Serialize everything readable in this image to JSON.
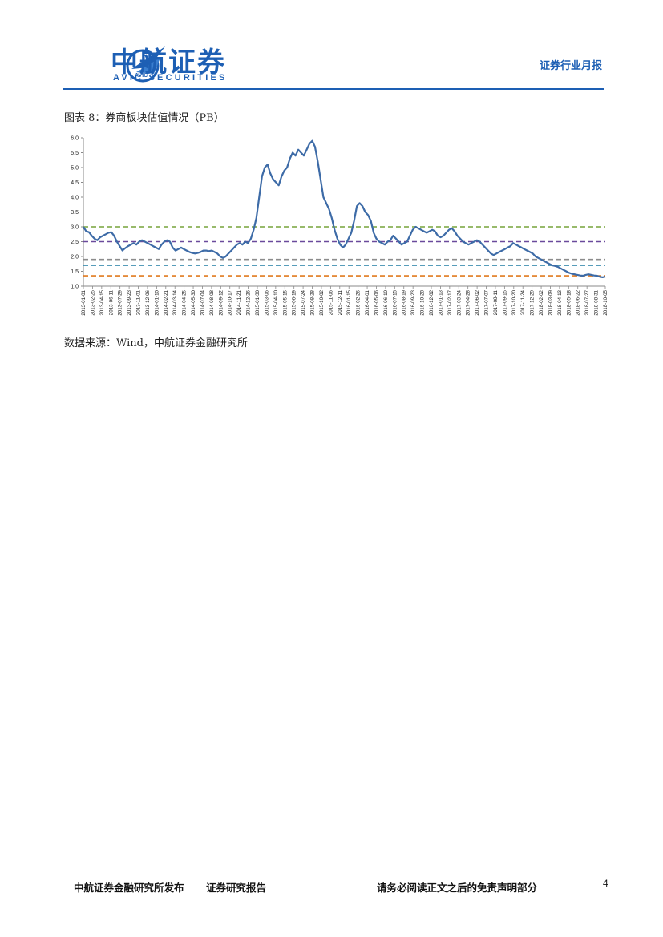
{
  "header": {
    "brand_cn": "中航证券",
    "brand_en": "AVIC SECURITIES",
    "logo_text": "AVIC",
    "report_type": "证券行业月报"
  },
  "figure": {
    "caption": "图表 8：券商板块估值情况（PB）",
    "source": "数据来源：Wind，中航证券金融研究所"
  },
  "chart_data": {
    "type": "line",
    "title": "",
    "xlabel": "",
    "ylabel": "",
    "ylim": [
      1.0,
      6.0
    ],
    "yticks": [
      "1.0",
      "1.5",
      "2.0",
      "2.5",
      "3.0",
      "3.5",
      "4.0",
      "4.5",
      "5.0",
      "5.5",
      "6.0"
    ],
    "x_tick_labels": [
      "2013-01-01",
      "2013-02-25",
      "2013-04-15",
      "2013-06-11",
      "2013-07-29",
      "2013-09-23",
      "2013-11-01",
      "2013-12-06",
      "2014-01-10",
      "2014-02-21",
      "2014-03-14",
      "2014-04-25",
      "2014-05-30",
      "2014-07-04",
      "2014-08-08",
      "2014-09-12",
      "2014-10-17",
      "2014-11-21",
      "2014-12-26",
      "2015-01-30",
      "2015-03-06",
      "2015-04-10",
      "2015-05-15",
      "2015-06-19",
      "2015-07-24",
      "2015-08-28",
      "2015-10-02",
      "2015-11-06",
      "2015-12-11",
      "2016-01-15",
      "2016-02-26",
      "2016-04-01",
      "2016-05-06",
      "2016-06-10",
      "2016-07-15",
      "2016-08-19",
      "2016-09-23",
      "2016-10-28",
      "2016-12-02",
      "2017-01-13",
      "2017-02-17",
      "2017-03-24",
      "2017-04-28",
      "2017-06-02",
      "2017-07-07",
      "2017-08-11",
      "2017-09-15",
      "2017-10-20",
      "2017-11-24",
      "2017-12-29",
      "2018-02-02",
      "2018-03-09",
      "2018-04-13",
      "2018-05-18",
      "2018-06-22",
      "2018-07-27",
      "2018-08-31",
      "2018-10-05"
    ],
    "series": [
      {
        "color": "#3d6ba7",
        "values": [
          3.0,
          2.85,
          2.82,
          2.7,
          2.6,
          2.55,
          2.65,
          2.7,
          2.75,
          2.8,
          2.82,
          2.7,
          2.5,
          2.35,
          2.2,
          2.28,
          2.35,
          2.4,
          2.45,
          2.4,
          2.5,
          2.55,
          2.5,
          2.45,
          2.4,
          2.35,
          2.3,
          2.25,
          2.4,
          2.5,
          2.55,
          2.5,
          2.3,
          2.2,
          2.25,
          2.3,
          2.25,
          2.2,
          2.15,
          2.12,
          2.1,
          2.12,
          2.15,
          2.2,
          2.2,
          2.18,
          2.2,
          2.15,
          2.1,
          2.0,
          1.95,
          2.0,
          2.1,
          2.2,
          2.3,
          2.4,
          2.45,
          2.4,
          2.5,
          2.45,
          2.6,
          2.9,
          3.3,
          4.0,
          4.7,
          5.0,
          5.1,
          4.8,
          4.6,
          4.5,
          4.4,
          4.7,
          4.9,
          5.0,
          5.3,
          5.5,
          5.4,
          5.6,
          5.5,
          5.4,
          5.6,
          5.8,
          5.9,
          5.7,
          5.2,
          4.6,
          4.0,
          3.8,
          3.6,
          3.3,
          2.9,
          2.6,
          2.4,
          2.3,
          2.4,
          2.6,
          2.8,
          3.2,
          3.7,
          3.8,
          3.7,
          3.5,
          3.4,
          3.2,
          2.8,
          2.6,
          2.5,
          2.45,
          2.4,
          2.5,
          2.55,
          2.7,
          2.6,
          2.5,
          2.4,
          2.45,
          2.5,
          2.7,
          2.9,
          3.0,
          2.95,
          2.9,
          2.85,
          2.8,
          2.85,
          2.9,
          2.85,
          2.7,
          2.65,
          2.7,
          2.8,
          2.9,
          2.95,
          2.85,
          2.7,
          2.6,
          2.5,
          2.45,
          2.4,
          2.45,
          2.5,
          2.55,
          2.5,
          2.4,
          2.3,
          2.2,
          2.1,
          2.05,
          2.1,
          2.15,
          2.2,
          2.25,
          2.3,
          2.35,
          2.45,
          2.4,
          2.35,
          2.3,
          2.25,
          2.2,
          2.15,
          2.1,
          2.0,
          1.95,
          1.9,
          1.85,
          1.8,
          1.75,
          1.7,
          1.68,
          1.65,
          1.6,
          1.55,
          1.5,
          1.45,
          1.42,
          1.4,
          1.38,
          1.36,
          1.35,
          1.38,
          1.4,
          1.38,
          1.36,
          1.35,
          1.32,
          1.3,
          1.32
        ]
      }
    ],
    "reference_lines": [
      {
        "value": 3.0,
        "color": "#77a33a",
        "style": "dashed"
      },
      {
        "value": 2.5,
        "color": "#6a4a9c",
        "style": "dashed"
      },
      {
        "value": 1.9,
        "color": "#8c8c8c",
        "style": "dashed"
      },
      {
        "value": 1.7,
        "color": "#3f8fb0",
        "style": "dashed"
      },
      {
        "value": 1.35,
        "color": "#e07a1f",
        "style": "dashed"
      }
    ],
    "grid": false,
    "legend": "none"
  },
  "footer": {
    "publisher": "中航证券金融研究所发布",
    "report_label": "证券研究报告",
    "disclaimer": "请务必阅读正文之后的免责声明部分",
    "page_number": "4"
  }
}
